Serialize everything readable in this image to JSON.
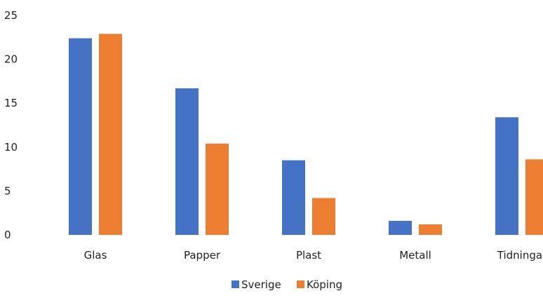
{
  "chart_data": {
    "type": "bar",
    "categories": [
      "Glas",
      "Papper",
      "Plast",
      "Metall",
      "Tidningar"
    ],
    "series": [
      {
        "name": "Sverige",
        "color": "#4472C4",
        "values": [
          22.4,
          16.7,
          8.5,
          1.6,
          13.4
        ]
      },
      {
        "name": "Köping",
        "color": "#ED7D31",
        "values": [
          22.9,
          10.4,
          4.2,
          1.2,
          8.6
        ]
      }
    ],
    "yticks": [
      "0",
      "5",
      "10",
      "15",
      "20",
      "25"
    ],
    "ylim": [
      0,
      25
    ],
    "grid": false,
    "legend_position": "bottom"
  }
}
